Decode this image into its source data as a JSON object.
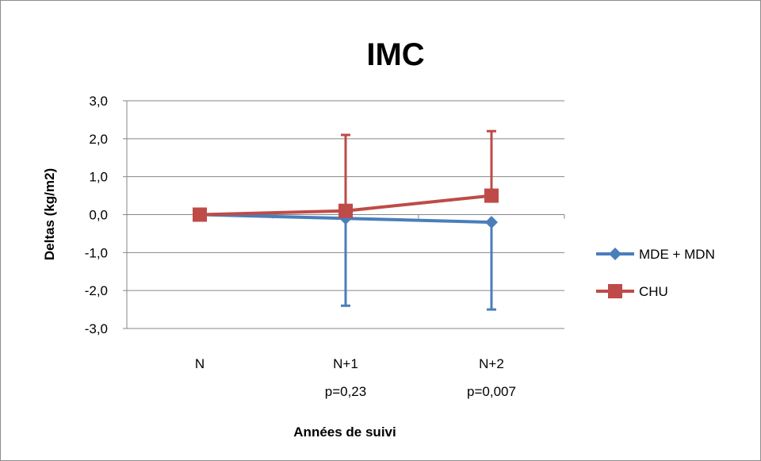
{
  "chart_data": {
    "type": "line",
    "title": "IMC",
    "xlabel": "Années de suivi",
    "ylabel": "Deltas (kg/m2)",
    "categories": [
      "N",
      "N+1",
      "N+2"
    ],
    "category_sublabels": [
      "",
      "p=0,23",
      "p=0,007"
    ],
    "ylim": [
      -3.0,
      3.0
    ],
    "yticks": [
      "3,0",
      "2,0",
      "1,0",
      "0,0",
      "-1,0",
      "-2,0",
      "-3,0"
    ],
    "grid": true,
    "legend_position": "right",
    "series": [
      {
        "name": "MDE + MDN",
        "color": "#4a7ebb",
        "marker": "diamond",
        "values": [
          0.0,
          -0.1,
          -0.2
        ],
        "error_low": [
          null,
          -2.4,
          -2.5
        ]
      },
      {
        "name": "CHU",
        "color": "#be4b48",
        "marker": "square",
        "values": [
          0.0,
          0.1,
          0.5
        ],
        "error_high": [
          null,
          2.1,
          2.2
        ]
      }
    ]
  }
}
